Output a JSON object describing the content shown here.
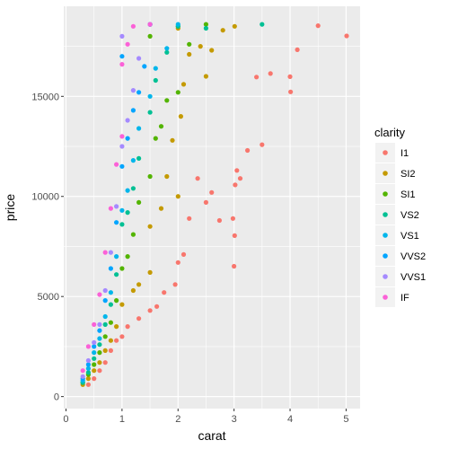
{
  "chart_data": {
    "type": "scatter",
    "title": "",
    "xlabel": "carat",
    "ylabel": "price",
    "xlim": [
      -0.04,
      5.25
    ],
    "ylim": [
      -600,
      19500
    ],
    "x_ticks": [
      0,
      1,
      2,
      3,
      4,
      5
    ],
    "x_tick_labels": [
      "0",
      "1",
      "2",
      "3",
      "4",
      "5"
    ],
    "y_ticks": [
      0,
      5000,
      10000,
      15000
    ],
    "y_tick_labels": [
      "0",
      "5000",
      "10000",
      "15000"
    ],
    "grid": true,
    "panel_background": "#EBEBEB",
    "legend": {
      "title": "clarity",
      "placement": "right",
      "entries": [
        {
          "label": "I1",
          "color": "#F8766D"
        },
        {
          "label": "SI2",
          "color": "#C49A00"
        },
        {
          "label": "SI1",
          "color": "#53B400"
        },
        {
          "label": "VS2",
          "color": "#00C094"
        },
        {
          "label": "VS1",
          "color": "#00B6EB"
        },
        {
          "label": "VVS2",
          "color": "#00A5FF"
        },
        {
          "label": "VVS1",
          "color": "#A58AFF"
        },
        {
          "label": "IF",
          "color": "#FB61D7"
        }
      ]
    },
    "series": [
      {
        "name": "I1",
        "color": "#F8766D",
        "points": [
          [
            5.01,
            18018
          ],
          [
            4.5,
            18531
          ],
          [
            4.13,
            17329
          ],
          [
            4.01,
            15223
          ],
          [
            4.0,
            15984
          ],
          [
            3.65,
            16140
          ],
          [
            3.5,
            12587
          ],
          [
            3.4,
            15964
          ],
          [
            3.24,
            12300
          ],
          [
            3.11,
            10900
          ],
          [
            3.05,
            11300
          ],
          [
            3.02,
            10577
          ],
          [
            3.01,
            8040
          ],
          [
            3.0,
            6512
          ],
          [
            2.98,
            8900
          ],
          [
            2.74,
            8800
          ],
          [
            2.6,
            10200
          ],
          [
            2.5,
            9700
          ],
          [
            2.35,
            10900
          ],
          [
            2.2,
            8900
          ],
          [
            2.1,
            7100
          ],
          [
            2.0,
            6700
          ],
          [
            1.95,
            5600
          ],
          [
            1.75,
            5200
          ],
          [
            1.62,
            4500
          ],
          [
            1.5,
            4300
          ],
          [
            1.3,
            3900
          ],
          [
            1.1,
            3500
          ],
          [
            1.0,
            3000
          ],
          [
            0.9,
            2800
          ],
          [
            0.8,
            2300
          ],
          [
            0.7,
            1700
          ],
          [
            0.6,
            1300
          ],
          [
            0.5,
            900
          ],
          [
            0.4,
            600
          ]
        ]
      },
      {
        "name": "SI2",
        "color": "#C49A00",
        "points": [
          [
            3.01,
            18500
          ],
          [
            2.8,
            18300
          ],
          [
            2.6,
            17300
          ],
          [
            2.5,
            16000
          ],
          [
            2.4,
            17500
          ],
          [
            2.2,
            17100
          ],
          [
            2.1,
            15600
          ],
          [
            2.05,
            14000
          ],
          [
            2.0,
            18400
          ],
          [
            2.0,
            10000
          ],
          [
            1.9,
            12800
          ],
          [
            1.8,
            11000
          ],
          [
            1.7,
            9400
          ],
          [
            1.5,
            8500
          ],
          [
            1.5,
            6200
          ],
          [
            1.3,
            5600
          ],
          [
            1.2,
            5300
          ],
          [
            1.0,
            4600
          ],
          [
            0.9,
            3500
          ],
          [
            0.8,
            2800
          ],
          [
            0.7,
            2300
          ],
          [
            0.6,
            1700
          ],
          [
            0.5,
            1300
          ],
          [
            0.4,
            900
          ],
          [
            0.3,
            600
          ]
        ]
      },
      {
        "name": "SI1",
        "color": "#53B400",
        "points": [
          [
            2.5,
            18600
          ],
          [
            2.2,
            17600
          ],
          [
            2.0,
            18500
          ],
          [
            2.0,
            15200
          ],
          [
            1.8,
            14800
          ],
          [
            1.7,
            13500
          ],
          [
            1.6,
            12900
          ],
          [
            1.5,
            11000
          ],
          [
            1.5,
            18000
          ],
          [
            1.3,
            9700
          ],
          [
            1.2,
            8100
          ],
          [
            1.1,
            7000
          ],
          [
            1.0,
            6400
          ],
          [
            0.9,
            4800
          ],
          [
            0.8,
            3700
          ],
          [
            0.7,
            3000
          ],
          [
            0.6,
            2200
          ],
          [
            0.5,
            1600
          ],
          [
            0.4,
            1100
          ],
          [
            0.3,
            700
          ]
        ]
      },
      {
        "name": "VS2",
        "color": "#00C094",
        "points": [
          [
            3.5,
            18600
          ],
          [
            2.5,
            18400
          ],
          [
            2.0,
            18500
          ],
          [
            1.8,
            17200
          ],
          [
            1.6,
            15800
          ],
          [
            1.5,
            14200
          ],
          [
            1.5,
            18600
          ],
          [
            1.3,
            11900
          ],
          [
            1.2,
            10400
          ],
          [
            1.1,
            9200
          ],
          [
            1.0,
            8600
          ],
          [
            0.9,
            6100
          ],
          [
            0.8,
            4600
          ],
          [
            0.7,
            3600
          ],
          [
            0.6,
            2600
          ],
          [
            0.5,
            1900
          ],
          [
            0.4,
            1200
          ],
          [
            0.3,
            700
          ]
        ]
      },
      {
        "name": "VS1",
        "color": "#00B6EB",
        "points": [
          [
            2.0,
            18600
          ],
          [
            1.8,
            17400
          ],
          [
            1.6,
            16400
          ],
          [
            1.5,
            15000
          ],
          [
            1.5,
            18600
          ],
          [
            1.3,
            13400
          ],
          [
            1.2,
            11800
          ],
          [
            1.1,
            10300
          ],
          [
            1.0,
            9300
          ],
          [
            0.9,
            7000
          ],
          [
            0.8,
            5200
          ],
          [
            0.7,
            4000
          ],
          [
            0.6,
            2900
          ],
          [
            0.5,
            2200
          ],
          [
            0.4,
            1400
          ],
          [
            0.3,
            800
          ]
        ]
      },
      {
        "name": "VVS2",
        "color": "#00A5FF",
        "points": [
          [
            1.5,
            18600
          ],
          [
            1.4,
            16500
          ],
          [
            1.3,
            15200
          ],
          [
            1.2,
            14300
          ],
          [
            1.1,
            12900
          ],
          [
            1.0,
            11500
          ],
          [
            1.0,
            17000
          ],
          [
            0.9,
            8700
          ],
          [
            0.8,
            6400
          ],
          [
            0.7,
            4800
          ],
          [
            0.6,
            3300
          ],
          [
            0.5,
            2500
          ],
          [
            0.4,
            1600
          ],
          [
            0.3,
            900
          ]
        ]
      },
      {
        "name": "VVS1",
        "color": "#A58AFF",
        "points": [
          [
            1.5,
            18600
          ],
          [
            1.3,
            16900
          ],
          [
            1.2,
            15300
          ],
          [
            1.1,
            13800
          ],
          [
            1.0,
            12500
          ],
          [
            1.0,
            18000
          ],
          [
            0.9,
            9500
          ],
          [
            0.8,
            7200
          ],
          [
            0.7,
            5300
          ],
          [
            0.6,
            3600
          ],
          [
            0.5,
            2700
          ],
          [
            0.4,
            1800
          ],
          [
            0.3,
            1000
          ]
        ]
      },
      {
        "name": "IF",
        "color": "#FB61D7",
        "points": [
          [
            1.5,
            18600
          ],
          [
            1.2,
            18500
          ],
          [
            1.1,
            17600
          ],
          [
            1.0,
            16600
          ],
          [
            1.0,
            13000
          ],
          [
            0.9,
            11600
          ],
          [
            0.8,
            9400
          ],
          [
            0.7,
            7200
          ],
          [
            0.6,
            5100
          ],
          [
            0.5,
            3600
          ],
          [
            0.4,
            2500
          ],
          [
            0.3,
            1300
          ]
        ]
      }
    ]
  }
}
